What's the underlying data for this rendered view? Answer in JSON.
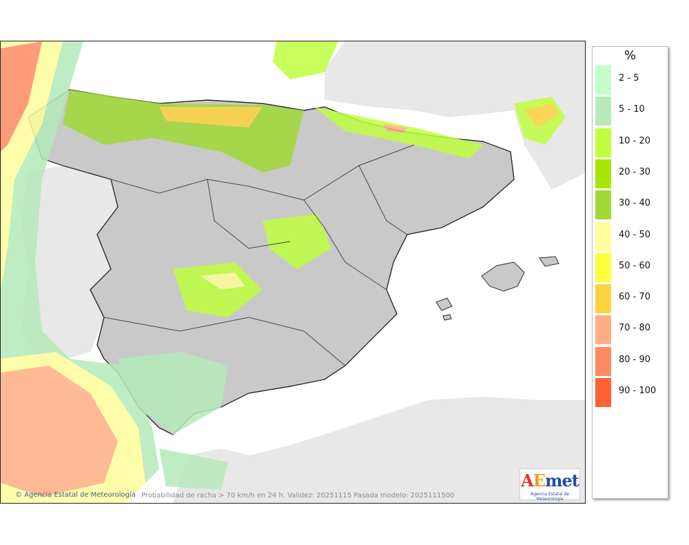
{
  "caption": "Probabilidad de racha > 70 km/h en 24 h. Validez: 20251115 Pasada modelo: 2025111500",
  "credit": "Agencia Estatal de Meteorología",
  "credit_icon": "copyright-icon",
  "logo": {
    "text": "AEmet",
    "subtitle": "Agencia Estatal de Meteorología",
    "colors": [
      "#e4322b",
      "#f0a020",
      "#1f4ea1"
    ]
  },
  "legend": {
    "title": "%",
    "items": [
      {
        "label": "2 - 5",
        "color": "#c3fdcc"
      },
      {
        "label": "5 - 10",
        "color": "#b5eab9"
      },
      {
        "label": "10 - 20",
        "color": "#bfff3f"
      },
      {
        "label": "20 - 30",
        "color": "#a8e600"
      },
      {
        "label": "30 - 40",
        "color": "#a1d936"
      },
      {
        "label": "40 - 50",
        "color": "#fefe9c"
      },
      {
        "label": "50 - 60",
        "color": "#fefe3e"
      },
      {
        "label": "60 - 70",
        "color": "#fed23e"
      },
      {
        "label": "70 - 80",
        "color": "#feae82"
      },
      {
        "label": "80 - 90",
        "color": "#fe8a62"
      },
      {
        "label": "90 - 100",
        "color": "#fe6232"
      }
    ]
  },
  "map": {
    "land_color": "#c9c9c9",
    "sea_color": "#ffffff",
    "foreign_land_color": "#e8e8e8",
    "border_color": "#2a2a2a"
  }
}
